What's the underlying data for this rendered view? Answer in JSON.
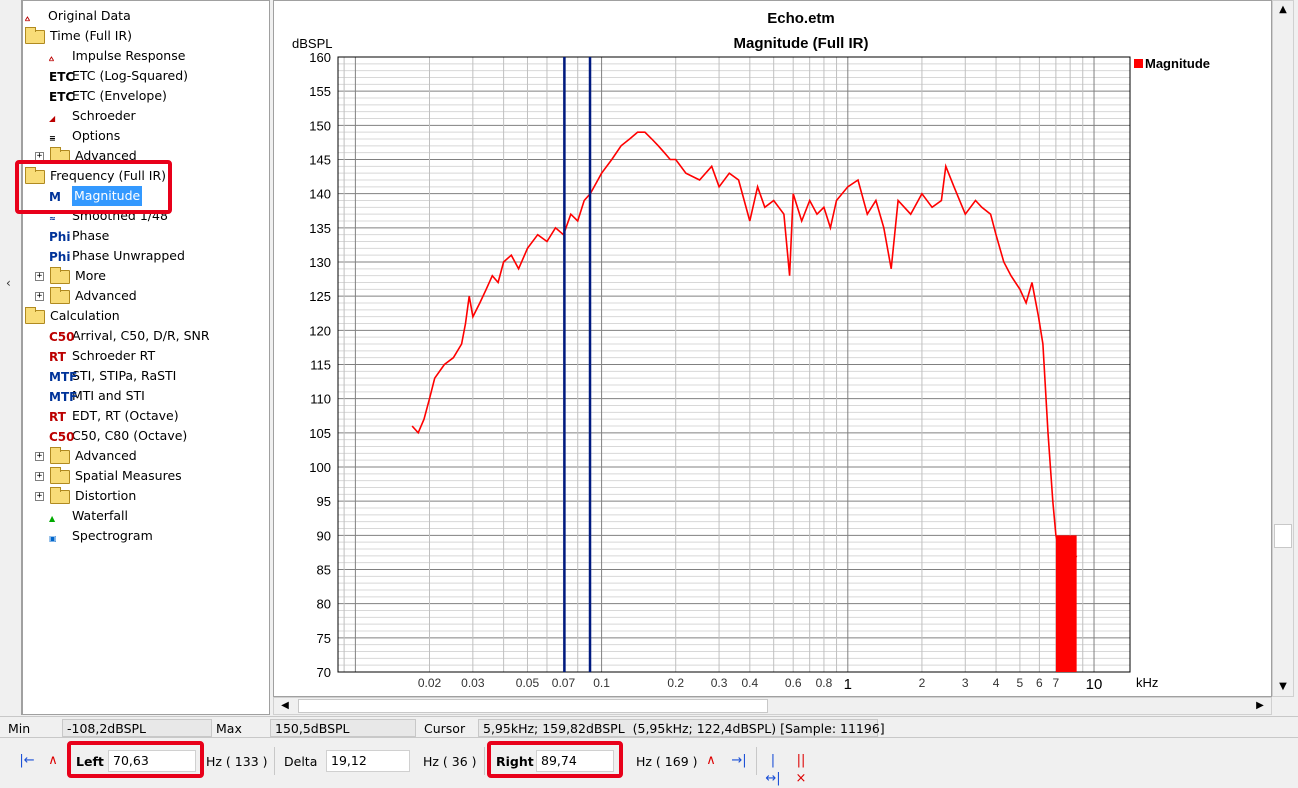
{
  "tree": {
    "items": [
      {
        "label": "Original Data",
        "icon": "impulse-icon"
      },
      {
        "label": "Time (Full IR)",
        "icon": "folder-open-icon"
      },
      {
        "label": "Impulse Response",
        "icon": "impulse-icon"
      },
      {
        "label": "ETC (Log-Squared)",
        "icon": "etc-icon"
      },
      {
        "label": "ETC (Envelope)",
        "icon": "etc-icon"
      },
      {
        "label": "Schroeder",
        "icon": "schroeder-icon"
      },
      {
        "label": "Options",
        "icon": "options-icon"
      },
      {
        "label": "Advanced",
        "icon": "folder-icon"
      },
      {
        "label": "Frequency (Full IR)",
        "icon": "folder-open-icon"
      },
      {
        "label": "Magnitude",
        "icon": "magnitude-icon"
      },
      {
        "label": "Smoothed 1/48",
        "icon": "smoothed-icon"
      },
      {
        "label": "Phase",
        "icon": "phase-icon"
      },
      {
        "label": "Phase Unwrapped",
        "icon": "phase-unwrapped-icon"
      },
      {
        "label": "More",
        "icon": "folder-icon"
      },
      {
        "label": "Advanced",
        "icon": "folder-icon"
      },
      {
        "label": "Calculation",
        "icon": "folder-open-icon"
      },
      {
        "label": "Arrival, C50, D/R, SNR",
        "icon": "c50-icon"
      },
      {
        "label": "Schroeder RT",
        "icon": "rt-icon"
      },
      {
        "label": "STI, STIPa, RaSTI",
        "icon": "mtf-icon"
      },
      {
        "label": "MTI and STI",
        "icon": "mtf-icon"
      },
      {
        "label": "EDT, RT (Octave)",
        "icon": "rt-icon"
      },
      {
        "label": "C50, C80 (Octave)",
        "icon": "c50-icon"
      },
      {
        "label": "Advanced",
        "icon": "folder-icon"
      },
      {
        "label": "Spatial Measures",
        "icon": "folder-icon"
      },
      {
        "label": "Distortion",
        "icon": "folder-icon"
      },
      {
        "label": "Waterfall",
        "icon": "waterfall-icon"
      },
      {
        "label": "Spectrogram",
        "icon": "spectrogram-icon"
      }
    ]
  },
  "chart_data": {
    "type": "line",
    "title": "Echo.etm",
    "subtitle": "Magnitude (Full IR)",
    "ylabel": "dBSPL",
    "xlabel": "kHz",
    "x_scale": "log",
    "xlim": [
      0.0085,
      14
    ],
    "ylim": [
      70,
      160
    ],
    "yticks": [
      70,
      75,
      80,
      85,
      90,
      95,
      100,
      105,
      110,
      115,
      120,
      125,
      130,
      135,
      140,
      145,
      150,
      155,
      160
    ],
    "xticks_small": [
      [
        "0.02",
        0.02
      ],
      [
        "0.03",
        0.03
      ],
      [
        "0.05",
        0.05
      ],
      [
        "0.07",
        0.07
      ],
      [
        "0.1",
        0.1
      ],
      [
        "0.2",
        0.2
      ],
      [
        "0.3",
        0.3
      ],
      [
        "0.4",
        0.4
      ],
      [
        "0.6",
        0.6
      ],
      [
        "0.8",
        0.8
      ],
      [
        "2",
        2
      ],
      [
        "3",
        3
      ],
      [
        "4",
        4
      ],
      [
        "5",
        5
      ],
      [
        "6",
        6
      ],
      [
        "7",
        7
      ]
    ],
    "xticks_big": [
      [
        "1",
        1
      ],
      [
        "10",
        10
      ]
    ],
    "grid": true,
    "legend": "top-right",
    "series_color": "#ff0000",
    "cursor_color": "#001a80",
    "cursors_khz": [
      0.07063,
      0.08974
    ],
    "series": [
      {
        "name": "Magnitude",
        "x": [
          0.017,
          0.018,
          0.019,
          0.02,
          0.021,
          0.023,
          0.025,
          0.027,
          0.028,
          0.029,
          0.03,
          0.032,
          0.034,
          0.036,
          0.038,
          0.04,
          0.043,
          0.046,
          0.05,
          0.055,
          0.06,
          0.065,
          0.07,
          0.075,
          0.08,
          0.085,
          0.09,
          0.1,
          0.11,
          0.12,
          0.13,
          0.14,
          0.15,
          0.16,
          0.17,
          0.18,
          0.19,
          0.2,
          0.22,
          0.25,
          0.28,
          0.3,
          0.33,
          0.36,
          0.4,
          0.43,
          0.46,
          0.5,
          0.55,
          0.58,
          0.6,
          0.65,
          0.7,
          0.75,
          0.8,
          0.85,
          0.9,
          1.0,
          1.1,
          1.2,
          1.3,
          1.4,
          1.5,
          1.6,
          1.8,
          2.0,
          2.2,
          2.4,
          2.5,
          2.7,
          3.0,
          3.3,
          3.5,
          3.8,
          4.0,
          4.3,
          4.6,
          5.0,
          5.3,
          5.6,
          5.95,
          6.2,
          6.5,
          6.8,
          7.0,
          7.2,
          7.5,
          7.8,
          8.0,
          8.2,
          8.5
        ],
        "y": [
          106,
          105,
          107,
          110,
          113,
          115,
          116,
          118,
          121,
          125,
          122,
          124,
          126,
          128,
          127,
          130,
          131,
          129,
          132,
          134,
          133,
          135,
          134,
          137,
          136,
          139,
          140,
          143,
          145,
          147,
          148,
          149,
          149,
          148,
          147,
          146,
          145,
          145,
          143,
          142,
          144,
          141,
          143,
          142,
          136,
          141,
          138,
          139,
          137,
          128,
          140,
          136,
          139,
          137,
          138,
          135,
          139,
          141,
          142,
          137,
          139,
          135,
          129,
          139,
          137,
          140,
          138,
          139,
          144,
          141,
          137,
          139,
          138,
          137,
          134,
          130,
          128,
          126,
          124,
          127,
          122,
          118,
          105,
          95,
          90,
          88,
          89,
          87,
          88,
          86,
          87
        ]
      }
    ]
  },
  "status": {
    "min_label": "Min",
    "min_value": "-108,2dBSPL",
    "max_label": "Max",
    "max_value": "150,5dBSPL",
    "cursor_label": "Cursor",
    "cursor_value": "5,95kHz; 159,82dBSPL  (5,95kHz; 122,4dBSPL) [Sample: 11196]"
  },
  "toolbar": {
    "left_label": "Left",
    "left_value": "70,63",
    "left_unit": "Hz ( 133 )",
    "delta_label": "Delta",
    "delta_value": "19,12",
    "delta_unit": "Hz ( 36 )",
    "right_label": "Right",
    "right_value": "89,74",
    "right_unit": "Hz ( 169 )"
  }
}
